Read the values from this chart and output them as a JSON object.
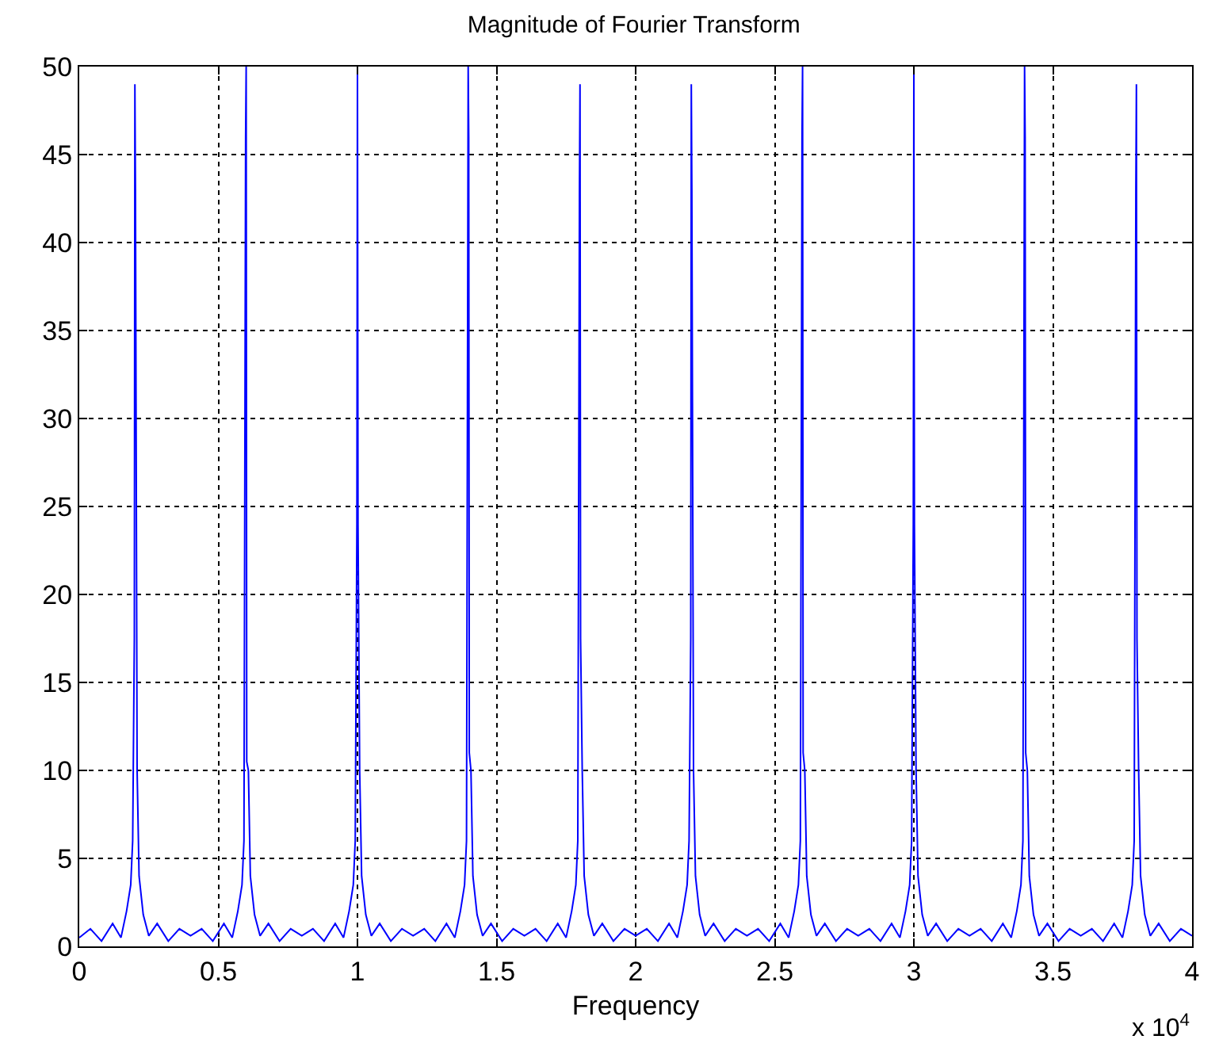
{
  "chart_data": {
    "type": "line",
    "title": "Magnitude of Fourier Transform",
    "xlabel": "Frequency",
    "annotations": [
      "x 10$^{4}$"
    ],
    "x": [
      0,
      0.04,
      0.08,
      0.12,
      0.15,
      0.17,
      0.185,
      0.192,
      0.198,
      0.2,
      0.202,
      0.208,
      0.215,
      0.23,
      0.25,
      0.28,
      0.32,
      0.36,
      0.4,
      0.44,
      0.48,
      0.52,
      0.55,
      0.57,
      0.585,
      0.592,
      0.598,
      0.6,
      0.602,
      0.608,
      0.615,
      0.63,
      0.65,
      0.68,
      0.72,
      0.76,
      0.8,
      0.84,
      0.88,
      0.92,
      0.95,
      0.97,
      0.985,
      0.992,
      0.998,
      1.0,
      1.002,
      1.008,
      1.015,
      1.03,
      1.05,
      1.08,
      1.12,
      1.16,
      1.2,
      1.24,
      1.28,
      1.32,
      1.35,
      1.37,
      1.385,
      1.392,
      1.398,
      1.4,
      1.402,
      1.408,
      1.415,
      1.43,
      1.45,
      1.48,
      1.52,
      1.56,
      1.6,
      1.64,
      1.68,
      1.72,
      1.75,
      1.77,
      1.785,
      1.792,
      1.798,
      1.8,
      1.802,
      1.808,
      1.815,
      1.83,
      1.85,
      1.88,
      1.92,
      1.96,
      2.0,
      2.04,
      2.08,
      2.12,
      2.15,
      2.17,
      2.185,
      2.192,
      2.198,
      2.2,
      2.202,
      2.208,
      2.215,
      2.23,
      2.25,
      2.28,
      2.32,
      2.36,
      2.4,
      2.44,
      2.48,
      2.52,
      2.55,
      2.57,
      2.585,
      2.592,
      2.598,
      2.6,
      2.602,
      2.608,
      2.615,
      2.63,
      2.65,
      2.68,
      2.72,
      2.76,
      2.8,
      2.84,
      2.88,
      2.92,
      2.95,
      2.97,
      2.985,
      2.992,
      2.998,
      3.0,
      3.002,
      3.008,
      3.015,
      3.03,
      3.05,
      3.08,
      3.12,
      3.16,
      3.2,
      3.24,
      3.28,
      3.32,
      3.35,
      3.37,
      3.385,
      3.392,
      3.398,
      3.4,
      3.402,
      3.408,
      3.415,
      3.43,
      3.45,
      3.48,
      3.52,
      3.56,
      3.6,
      3.64,
      3.68,
      3.72,
      3.75,
      3.77,
      3.785,
      3.792,
      3.798,
      3.8,
      3.802,
      3.808,
      3.815,
      3.83,
      3.85,
      3.88,
      3.92,
      3.96,
      4.0
    ],
    "series": [
      {
        "color": "#0000ff",
        "values": [
          0.5,
          1.0,
          0.3,
          1.3,
          0.5,
          2.0,
          3.5,
          6,
          17.5,
          49,
          43,
          10,
          4,
          1.8,
          0.6,
          1.3,
          0.3,
          1.0,
          0.6,
          1.0,
          0.3,
          1.3,
          0.5,
          2.0,
          3.5,
          6,
          46,
          50,
          10.5,
          10,
          4,
          1.8,
          0.6,
          1.3,
          0.3,
          1.0,
          0.6,
          1.0,
          0.3,
          1.3,
          0.5,
          2.0,
          3.5,
          6,
          24,
          50,
          24,
          10,
          4,
          1.8,
          0.6,
          1.3,
          0.3,
          1.0,
          0.6,
          1.0,
          0.3,
          1.3,
          0.5,
          2.0,
          3.5,
          6,
          50,
          46,
          11,
          10,
          4,
          1.8,
          0.6,
          1.3,
          0.3,
          1.0,
          0.6,
          1.0,
          0.3,
          1.3,
          0.5,
          2.0,
          3.5,
          6,
          43,
          49,
          17.5,
          10,
          4,
          1.8,
          0.6,
          1.3,
          0.3,
          1.0,
          0.6,
          1.0,
          0.3,
          1.3,
          0.5,
          2.0,
          3.5,
          6,
          17.5,
          49,
          43,
          10,
          4,
          1.8,
          0.6,
          1.3,
          0.3,
          1.0,
          0.6,
          1.0,
          0.3,
          1.3,
          0.5,
          2.0,
          3.5,
          6,
          46,
          50,
          11,
          10,
          4,
          1.8,
          0.6,
          1.3,
          0.3,
          1.0,
          0.6,
          1.0,
          0.3,
          1.3,
          0.5,
          2.0,
          3.5,
          6,
          24,
          50,
          24,
          10,
          4,
          1.8,
          0.6,
          1.3,
          0.3,
          1.0,
          0.6,
          1.0,
          0.3,
          1.3,
          0.5,
          2.0,
          3.5,
          6,
          50,
          46,
          11,
          10,
          4,
          1.8,
          0.6,
          1.3,
          0.3,
          1.0,
          0.6,
          1.0,
          0.3,
          1.3,
          0.5,
          2.0,
          3.5,
          6,
          43,
          49,
          17.5,
          10,
          4,
          1.8,
          0.6,
          1.3,
          0.3,
          1.0,
          0.6
        ]
      }
    ],
    "xlim": [
      0,
      4
    ],
    "xticks": [
      0,
      0.5,
      1,
      1.5,
      2,
      2.5,
      3,
      3.5,
      4
    ],
    "ylim": [
      0,
      50
    ],
    "yticks": [
      0,
      5,
      10,
      15,
      20,
      25,
      30,
      35,
      40,
      45,
      50
    ],
    "grid": true,
    "marker": "none",
    "line_style": "solid"
  }
}
